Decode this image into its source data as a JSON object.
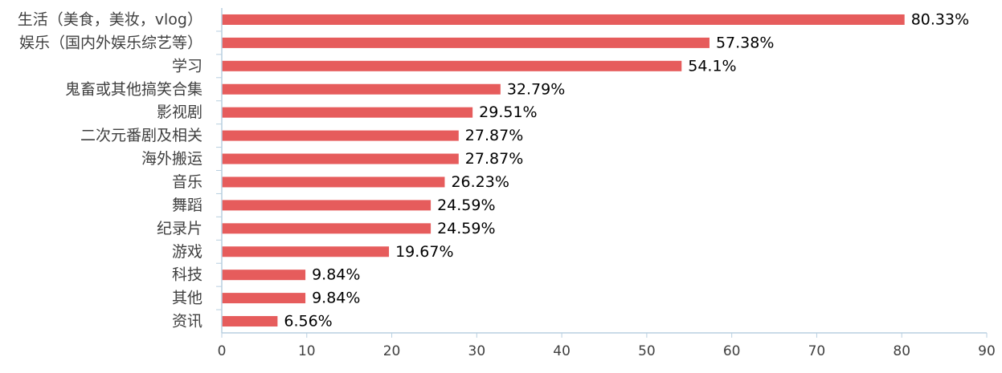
{
  "chart_data": {
    "type": "bar",
    "orientation": "horizontal",
    "categories": [
      "生活（美食，美妆，vlog）",
      "娱乐（国内外娱乐综艺等）",
      "学习",
      "鬼畜或其他搞笑合集",
      "影视剧",
      "二次元番剧及相关",
      "海外搬运",
      "音乐",
      "舞蹈",
      "纪录片",
      "游戏",
      "科技",
      "其他",
      "资讯"
    ],
    "values": [
      80.33,
      57.38,
      54.1,
      32.79,
      29.51,
      27.87,
      27.87,
      26.23,
      24.59,
      24.59,
      19.67,
      9.84,
      9.84,
      6.56
    ],
    "value_labels": [
      "80.33%",
      "57.38%",
      "54.1%",
      "32.79%",
      "29.51%",
      "27.87%",
      "27.87%",
      "26.23%",
      "24.59%",
      "24.59%",
      "19.67%",
      "9.84%",
      "9.84%",
      "6.56%"
    ],
    "x_ticks": [
      "0",
      "10",
      "20",
      "30",
      "40",
      "50",
      "60",
      "70",
      "80",
      "90"
    ],
    "xlim": [
      0,
      90
    ],
    "title": "",
    "xlabel": "",
    "ylabel": "",
    "grid": false,
    "legend": "none",
    "bar_color": "#e65c5c",
    "axis_color": "#b8cfe0"
  }
}
